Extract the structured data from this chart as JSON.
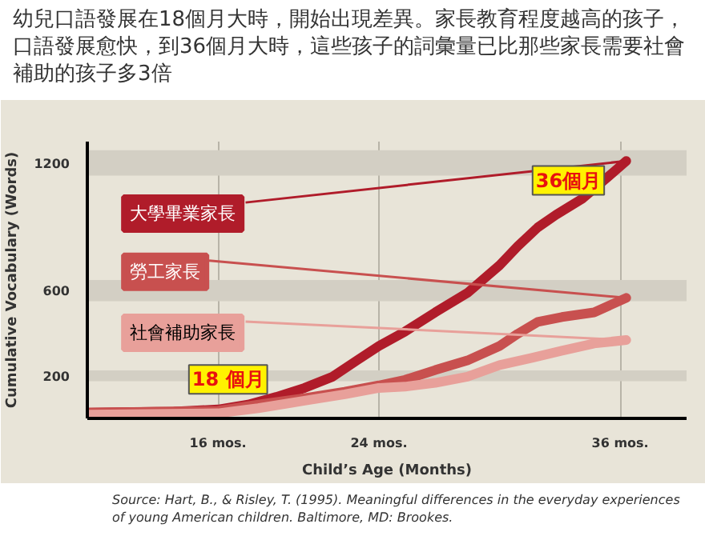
{
  "chart_data": {
    "type": "line",
    "title": "幼兒口語發展在18個月大時，開始出現差異。家長教育程度越高的孩子，口語發展愈快，到36個月大時，這些孩子的詞彙量已比那些家長需要社會補助的孩子多3倍",
    "xlabel": "Child’s Age (Months)",
    "ylabel": "Cumulative Vocabulary (Words)",
    "xlim": [
      9.5,
      39.3
    ],
    "ylim": [
      0,
      1300
    ],
    "xticks": [
      {
        "value": 16,
        "label": "16 mos."
      },
      {
        "value": 24,
        "label": "24 mos."
      },
      {
        "value": 36,
        "label": "36 mos."
      }
    ],
    "yticks": [
      200,
      600,
      1200
    ],
    "grid": "x",
    "bands": [
      {
        "axis": "y",
        "from": 175,
        "to": 225,
        "color": "#d3cfc4"
      },
      {
        "axis": "y",
        "from": 550,
        "to": 650,
        "color": "#d3cfc4"
      },
      {
        "axis": "y",
        "from": 1140,
        "to": 1260,
        "color": "#d3cfc4"
      }
    ],
    "series": [
      {
        "name": "大學畢業家長",
        "color": "#b01c2a",
        "x": [
          9.6,
          13.8,
          16,
          17.5,
          18.9,
          20.3,
          21.7,
          22.9,
          24,
          25.3,
          26.8,
          28.4,
          30.0,
          30.9,
          31.9,
          32.8,
          34.1,
          35.4,
          36.3
        ],
        "values": [
          27,
          32,
          42,
          65,
          101,
          143,
          196,
          272,
          340,
          408,
          498,
          589,
          719,
          808,
          897,
          956,
          1031,
          1135,
          1209
        ]
      },
      {
        "name": "勞工家長",
        "color": "#c8504f",
        "x": [
          9.6,
          16,
          18.0,
          20.3,
          22.3,
          24,
          25.3,
          26.8,
          28.4,
          30.0,
          30.9,
          31.9,
          33.1,
          34.7,
          36.3
        ],
        "values": [
          27,
          36,
          65,
          95,
          125,
          155,
          181,
          227,
          272,
          340,
          397,
          453,
          476,
          498,
          566
        ]
      },
      {
        "name": "社會補助家長",
        "color": "#e8a09a",
        "x": [
          9.6,
          16,
          18.0,
          20.3,
          22.3,
          24,
          25.3,
          26.8,
          28.4,
          30.0,
          31.6,
          33.1,
          34.7,
          36.3
        ],
        "values": [
          18,
          24,
          48,
          83,
          113,
          143,
          149,
          167,
          196,
          250,
          284,
          318,
          352,
          368
        ]
      }
    ],
    "annotations": [
      {
        "text": "18 個月",
        "x": 16.5,
        "y": 40
      },
      {
        "text": "36個月",
        "x": 36,
        "y": 1200
      },
      "Source: Hart, B., & Risley, T. (1995). Meaningful differences in the everyday experiences of young American children. Baltimore, MD: Brookes."
    ]
  }
}
